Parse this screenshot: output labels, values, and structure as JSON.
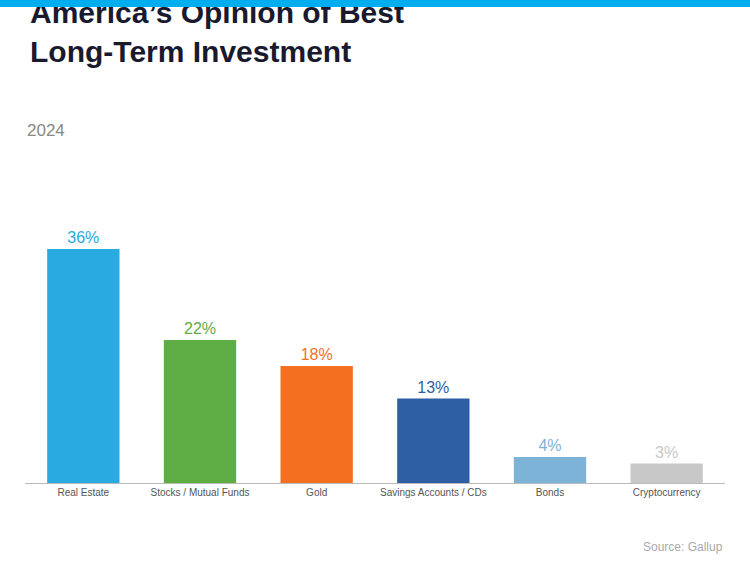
{
  "chart_data": {
    "type": "bar",
    "title": "America’s Opinion of Best\nLong-Term Investment",
    "subtitle": "2024",
    "annotations": [
      "Source: Gallup"
    ],
    "categories": [
      "Real Estate",
      "Stocks / Mutual Funds",
      "Gold",
      "Savings Accounts / CDs",
      "Bonds",
      "Cryptocurrency"
    ],
    "values": [
      36,
      22,
      18,
      13,
      4,
      3
    ],
    "value_labels": [
      "36%",
      "22%",
      "18%",
      "13%",
      "4%",
      "3%"
    ],
    "colors": [
      "#29ABE2",
      "#5EAD45",
      "#F37021",
      "#2E5FA3",
      "#7EB3D8",
      "#C8C8C8"
    ],
    "ylim": [
      0,
      42
    ],
    "data_labels": true,
    "tick_labels": "x",
    "grid": false
  }
}
